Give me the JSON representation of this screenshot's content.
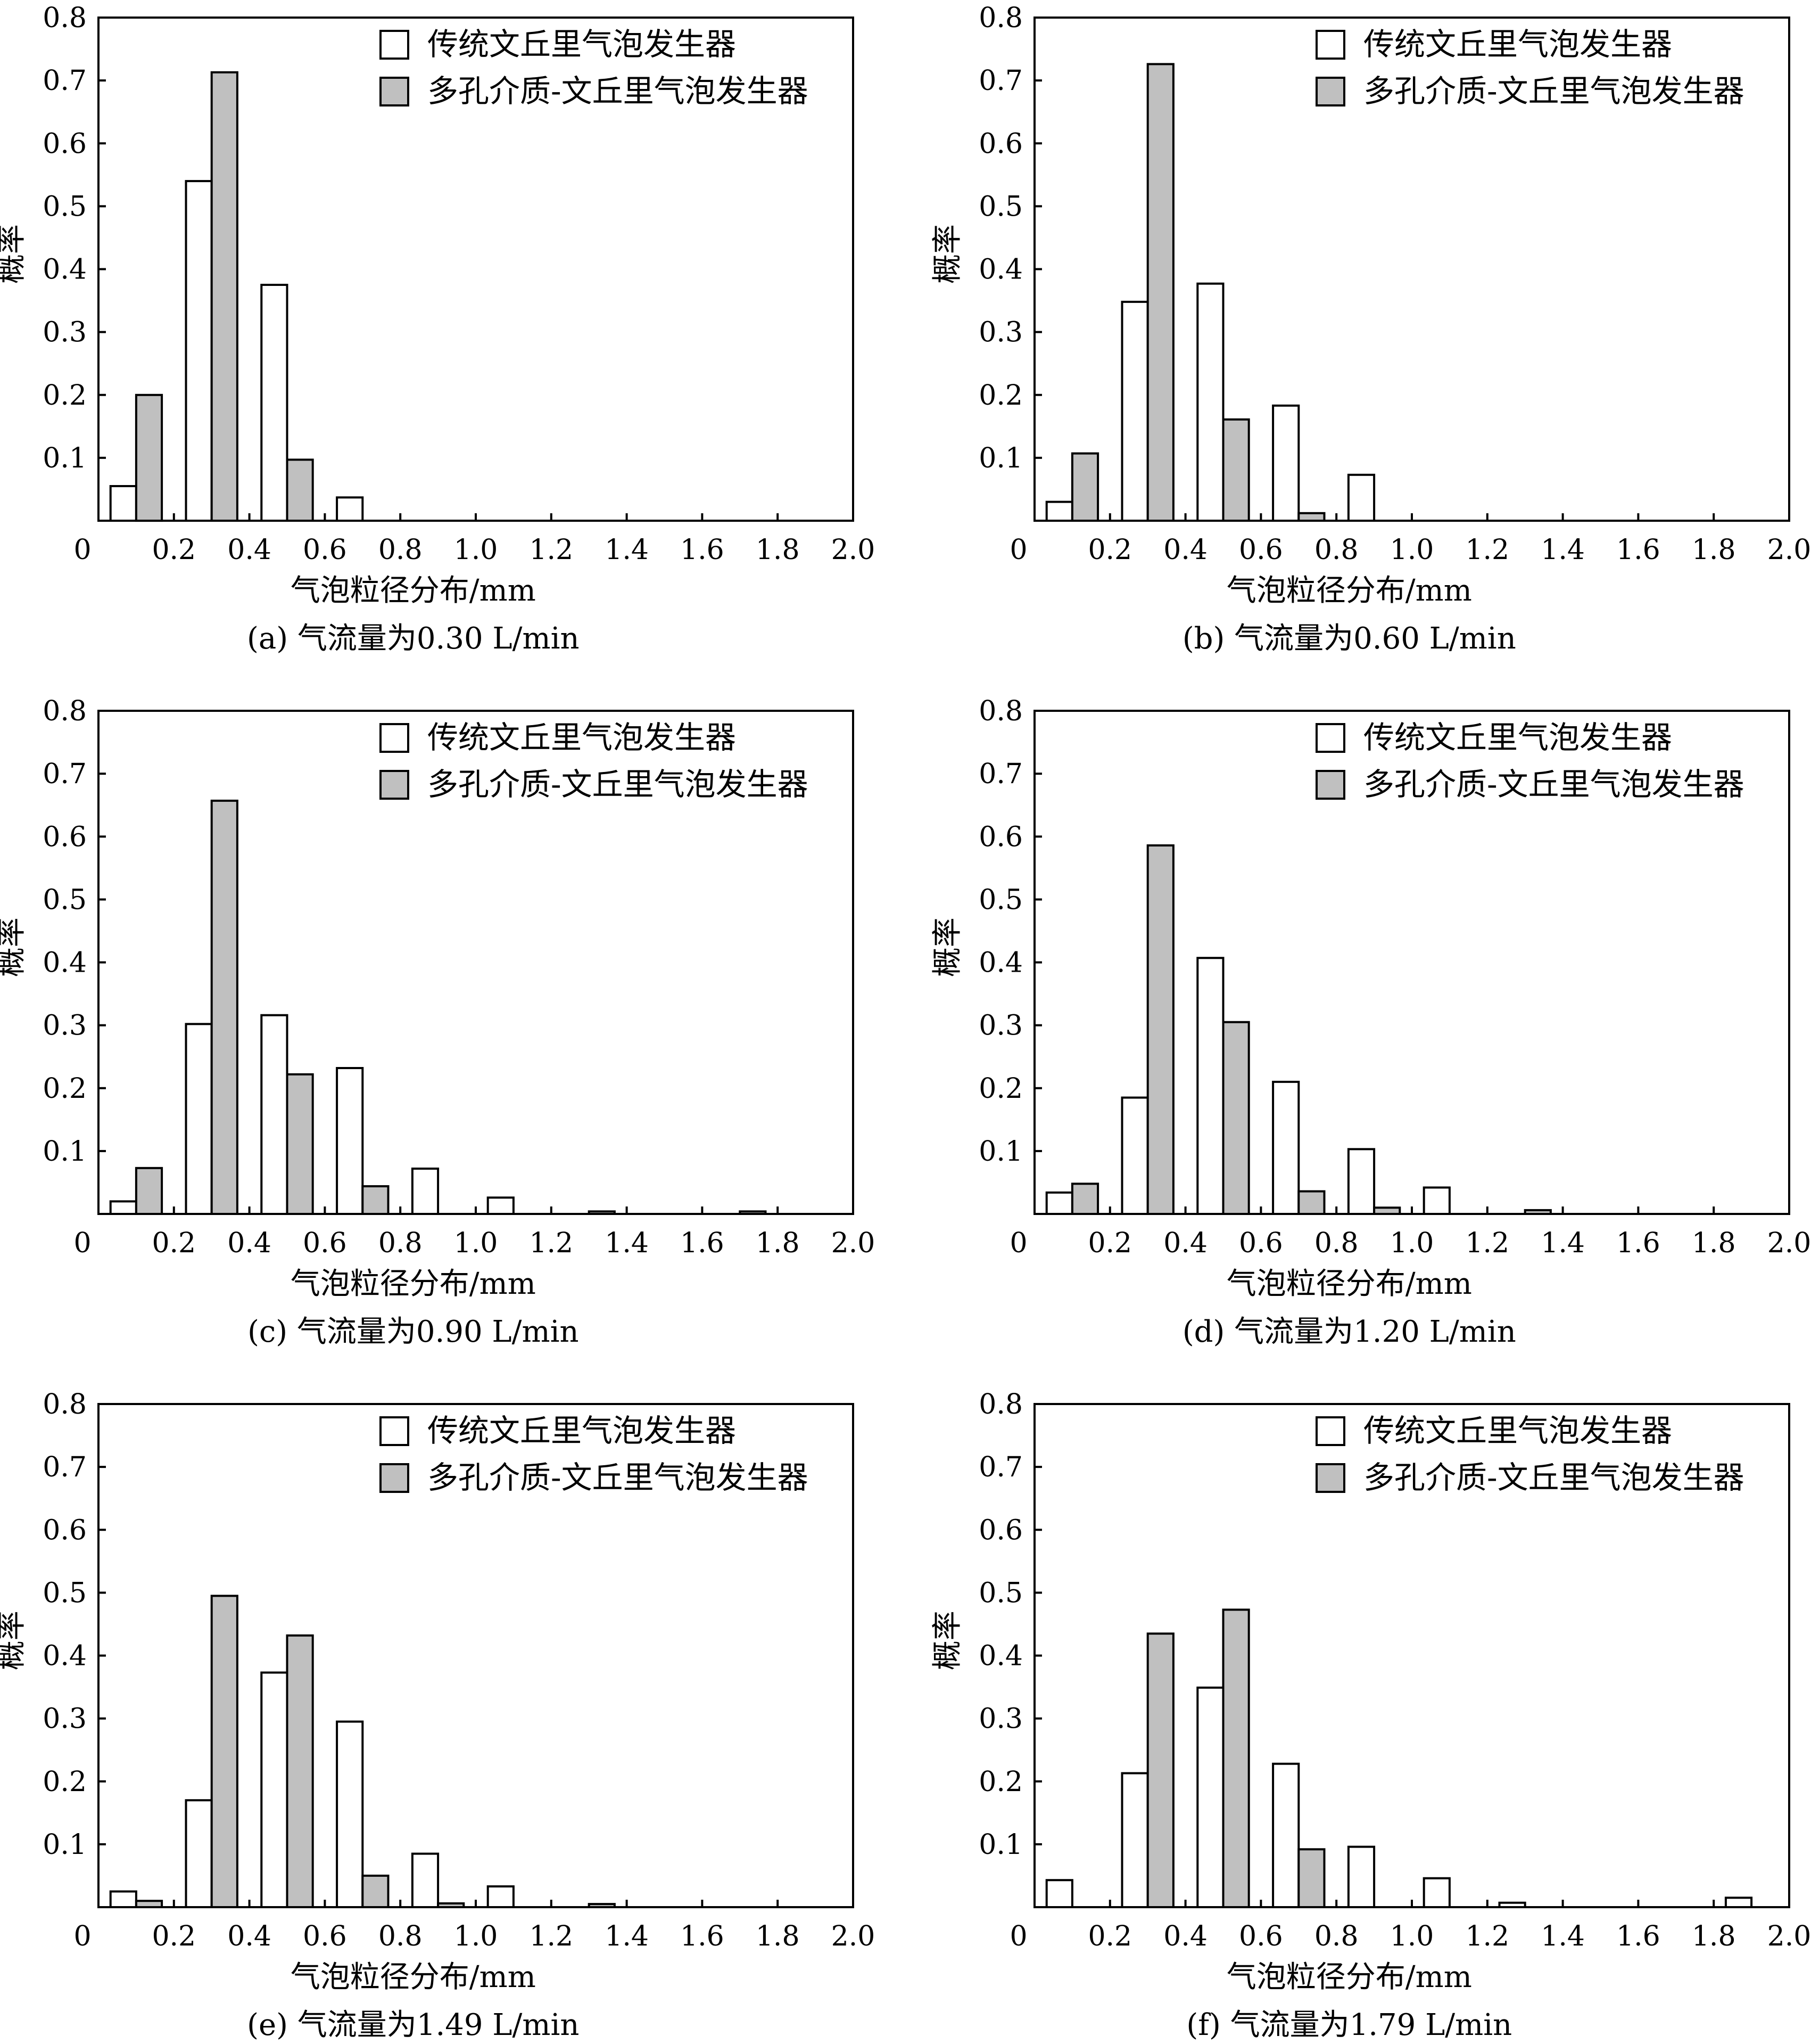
{
  "chart_data": [
    {
      "type": "bar",
      "panel": "(a)",
      "caption": "(a) 气流量为0.30 L/min",
      "xlabel": "气泡粒径分布/mm",
      "ylabel": "概率",
      "xlim": [
        0,
        2.0
      ],
      "ylim": [
        0,
        0.8
      ],
      "xticks": [
        "0",
        "0.2",
        "0.4",
        "0.6",
        "0.8",
        "1.0",
        "1.2",
        "1.4",
        "1.6",
        "1.8",
        "2.0"
      ],
      "yticks": [
        "0.1",
        "0.2",
        "0.3",
        "0.4",
        "0.5",
        "0.6",
        "0.7",
        "0.8"
      ],
      "categories": [
        0.1,
        0.3,
        0.5,
        0.7,
        0.9,
        1.1,
        1.3,
        1.5,
        1.7,
        1.9
      ],
      "series": [
        {
          "name": "传统文丘里气泡发生器",
          "color": "#ffffff",
          "values": [
            0.055,
            0.54,
            0.375,
            0.037,
            0,
            0,
            0,
            0,
            0,
            0
          ]
        },
        {
          "name": "多孔介质-文丘里气泡发生器",
          "color": "#c0c0c0",
          "values": [
            0.2,
            0.713,
            0.097,
            0,
            0,
            0,
            0,
            0,
            0,
            0
          ]
        }
      ],
      "legend": "top-right"
    },
    {
      "type": "bar",
      "panel": "(b)",
      "caption": "(b) 气流量为0.60 L/min",
      "xlabel": "气泡粒径分布/mm",
      "ylabel": "概率",
      "xlim": [
        0,
        2.0
      ],
      "ylim": [
        0,
        0.8
      ],
      "xticks": [
        "0",
        "0.2",
        "0.4",
        "0.6",
        "0.8",
        "1.0",
        "1.2",
        "1.4",
        "1.6",
        "1.8",
        "2.0"
      ],
      "yticks": [
        "0.1",
        "0.2",
        "0.3",
        "0.4",
        "0.5",
        "0.6",
        "0.7",
        "0.8"
      ],
      "categories": [
        0.1,
        0.3,
        0.5,
        0.7,
        0.9,
        1.1,
        1.3,
        1.5,
        1.7,
        1.9
      ],
      "series": [
        {
          "name": "传统文丘里气泡发生器",
          "color": "#ffffff",
          "values": [
            0.03,
            0.348,
            0.377,
            0.183,
            0.073,
            0,
            0,
            0,
            0,
            0
          ]
        },
        {
          "name": "多孔介质-文丘里气泡发生器",
          "color": "#c0c0c0",
          "values": [
            0.107,
            0.726,
            0.161,
            0.012,
            0,
            0,
            0,
            0,
            0,
            0
          ]
        }
      ],
      "legend": "top-right"
    },
    {
      "type": "bar",
      "panel": "(c)",
      "caption": "(c) 气流量为0.90 L/min",
      "xlabel": "气泡粒径分布/mm",
      "ylabel": "概率",
      "xlim": [
        0,
        2.0
      ],
      "ylim": [
        0,
        0.8
      ],
      "xticks": [
        "0",
        "0.2",
        "0.4",
        "0.6",
        "0.8",
        "1.0",
        "1.2",
        "1.4",
        "1.6",
        "1.8",
        "2.0"
      ],
      "yticks": [
        "0.1",
        "0.2",
        "0.3",
        "0.4",
        "0.5",
        "0.6",
        "0.7",
        "0.8"
      ],
      "categories": [
        0.1,
        0.3,
        0.5,
        0.7,
        0.9,
        1.1,
        1.3,
        1.5,
        1.7,
        1.9
      ],
      "series": [
        {
          "name": "传统文丘里气泡发生器",
          "color": "#ffffff",
          "values": [
            0.02,
            0.302,
            0.316,
            0.232,
            0.072,
            0.026,
            0,
            0,
            0,
            0
          ]
        },
        {
          "name": "多孔介质-文丘里气泡发生器",
          "color": "#c0c0c0",
          "values": [
            0.073,
            0.657,
            0.222,
            0.044,
            0,
            0,
            0.004,
            0,
            0.004,
            0
          ]
        }
      ],
      "legend": "top-right"
    },
    {
      "type": "bar",
      "panel": "(d)",
      "caption": "(d) 气流量为1.20 L/min",
      "xlabel": "气泡粒径分布/mm",
      "ylabel": "概率",
      "xlim": [
        0,
        2.0
      ],
      "ylim": [
        0,
        0.8
      ],
      "xticks": [
        "0",
        "0.2",
        "0.4",
        "0.6",
        "0.8",
        "1.0",
        "1.2",
        "1.4",
        "1.6",
        "1.8",
        "2.0"
      ],
      "yticks": [
        "0.1",
        "0.2",
        "0.3",
        "0.4",
        "0.5",
        "0.6",
        "0.7",
        "0.8"
      ],
      "categories": [
        0.1,
        0.3,
        0.5,
        0.7,
        0.9,
        1.1,
        1.3,
        1.5,
        1.7,
        1.9
      ],
      "series": [
        {
          "name": "传统文丘里气泡发生器",
          "color": "#ffffff",
          "values": [
            0.034,
            0.185,
            0.407,
            0.21,
            0.103,
            0.042,
            0,
            0,
            0,
            0
          ]
        },
        {
          "name": "多孔介质-文丘里气泡发生器",
          "color": "#c0c0c0",
          "values": [
            0.048,
            0.586,
            0.305,
            0.036,
            0.01,
            0,
            0.006,
            0,
            0,
            0
          ]
        }
      ],
      "legend": "top-right"
    },
    {
      "type": "bar",
      "panel": "(e)",
      "caption": "(e) 气流量为1.49 L/min",
      "xlabel": "气泡粒径分布/mm",
      "ylabel": "概率",
      "xlim": [
        0,
        2.0
      ],
      "ylim": [
        0,
        0.8
      ],
      "xticks": [
        "0",
        "0.2",
        "0.4",
        "0.6",
        "0.8",
        "1.0",
        "1.2",
        "1.4",
        "1.6",
        "1.8",
        "2.0"
      ],
      "yticks": [
        "0.1",
        "0.2",
        "0.3",
        "0.4",
        "0.5",
        "0.6",
        "0.7",
        "0.8"
      ],
      "categories": [
        0.1,
        0.3,
        0.5,
        0.7,
        0.9,
        1.1,
        1.3,
        1.5,
        1.7,
        1.9
      ],
      "series": [
        {
          "name": "传统文丘里气泡发生器",
          "color": "#ffffff",
          "values": [
            0.025,
            0.17,
            0.373,
            0.295,
            0.085,
            0.033,
            0,
            0,
            0,
            0
          ]
        },
        {
          "name": "多孔介质-文丘里气泡发生器",
          "color": "#c0c0c0",
          "values": [
            0.01,
            0.495,
            0.432,
            0.05,
            0.006,
            0,
            0.005,
            0,
            0,
            0
          ]
        }
      ],
      "legend": "top-right"
    },
    {
      "type": "bar",
      "panel": "(f)",
      "caption": "(f) 气流量为1.79 L/min",
      "xlabel": "气泡粒径分布/mm",
      "ylabel": "概率",
      "xlim": [
        0,
        2.0
      ],
      "ylim": [
        0,
        0.8
      ],
      "xticks": [
        "0",
        "0.2",
        "0.4",
        "0.6",
        "0.8",
        "1.0",
        "1.2",
        "1.4",
        "1.6",
        "1.8",
        "2.0"
      ],
      "yticks": [
        "0.1",
        "0.2",
        "0.3",
        "0.4",
        "0.5",
        "0.6",
        "0.7",
        "0.8"
      ],
      "categories": [
        0.1,
        0.3,
        0.5,
        0.7,
        0.9,
        1.1,
        1.3,
        1.5,
        1.7,
        1.9
      ],
      "series": [
        {
          "name": "传统文丘里气泡发生器",
          "color": "#ffffff",
          "values": [
            0.043,
            0.213,
            0.349,
            0.228,
            0.096,
            0.046,
            0.007,
            0,
            0,
            0.015
          ]
        },
        {
          "name": "多孔介质-文丘里气泡发生器",
          "color": "#c0c0c0",
          "values": [
            0,
            0.435,
            0.473,
            0.092,
            0,
            0,
            0,
            0,
            0,
            0
          ]
        }
      ],
      "legend": "top-right"
    }
  ]
}
